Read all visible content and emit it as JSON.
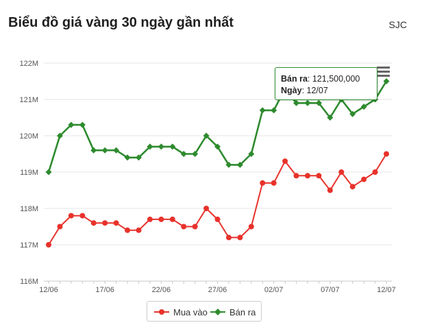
{
  "header": {
    "title": "Biểu đồ giá vàng 30 ngày gần nhất",
    "brand": "SJC"
  },
  "tooltip": {
    "sell_label": "Bán ra",
    "sell_value": "121,500,000",
    "date_label": "Ngày",
    "date_value": "12/07"
  },
  "legend": {
    "buy": "Mua vào",
    "sell": "Bán ra"
  },
  "colors": {
    "buy": "#e8322b",
    "sell": "#2e8b2e",
    "grid": "#e6e6e6"
  },
  "chart_data": {
    "type": "line",
    "y_tick_labels": [
      "116M",
      "117M",
      "118M",
      "119M",
      "120M",
      "121M",
      "122M"
    ],
    "y_ticks": [
      116,
      117,
      118,
      119,
      120,
      121,
      122
    ],
    "ylim": [
      116,
      122
    ],
    "x_tick_labels": [
      "12/06",
      "17/06",
      "22/06",
      "27/06",
      "02/07",
      "07/07",
      "12/07"
    ],
    "x_tick_index": [
      0,
      5,
      10,
      15,
      20,
      25,
      30
    ],
    "x_count": 31,
    "series": [
      {
        "name": "Mua vào",
        "marker": "circle",
        "values": [
          117.0,
          117.5,
          117.8,
          117.8,
          117.6,
          117.6,
          117.6,
          117.4,
          117.4,
          117.7,
          117.7,
          117.7,
          117.5,
          117.5,
          118.0,
          117.7,
          117.2,
          117.2,
          117.5,
          118.7,
          118.7,
          119.3,
          118.9,
          118.9,
          118.9,
          118.5,
          119.0,
          118.6,
          118.8,
          119.0,
          119.5
        ]
      },
      {
        "name": "Bán ra",
        "marker": "diamond",
        "values": [
          119.0,
          120.0,
          120.3,
          120.3,
          119.6,
          119.6,
          119.6,
          119.4,
          119.4,
          119.7,
          119.7,
          119.7,
          119.5,
          119.5,
          120.0,
          119.7,
          119.2,
          119.2,
          119.5,
          120.7,
          120.7,
          121.3,
          120.9,
          120.9,
          120.9,
          120.5,
          121.0,
          120.6,
          120.8,
          121.0,
          121.5
        ]
      }
    ]
  }
}
